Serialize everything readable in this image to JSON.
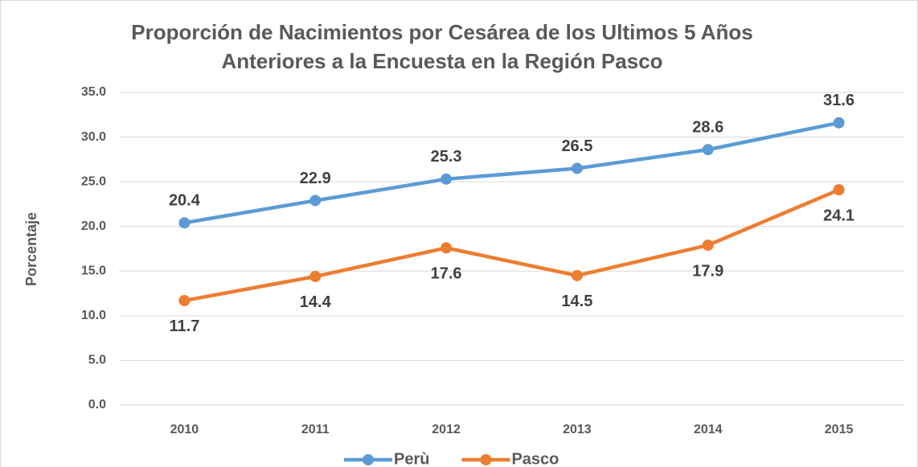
{
  "chart_data": {
    "type": "line",
    "title": [
      "Proporción de Nacimientos por Cesárea de los Ultimos 5 Años",
      "Anteriores a la Encuesta en la Región Pasco"
    ],
    "y_label": "Porcentaje",
    "categories": [
      "2010",
      "2011",
      "2012",
      "2013",
      "2014",
      "2015"
    ],
    "series": [
      {
        "name": "Perù",
        "color": "#5b9bd5",
        "values": [
          20.4,
          22.9,
          25.3,
          26.5,
          28.6,
          31.6
        ]
      },
      {
        "name": "Pasco",
        "color": "#ed7d31",
        "values": [
          11.7,
          14.4,
          17.6,
          14.5,
          17.9,
          24.1
        ]
      }
    ],
    "ylim": [
      0,
      35
    ],
    "yticks": [
      {
        "value": 0,
        "label": "0.0"
      },
      {
        "value": 5,
        "label": "5.0"
      },
      {
        "value": 10,
        "label": "10.0"
      },
      {
        "value": 15,
        "label": "15.0"
      },
      {
        "value": 20,
        "label": "20.0"
      },
      {
        "value": 25,
        "label": "25.0"
      },
      {
        "value": 30,
        "label": "30.0"
      },
      {
        "value": 35,
        "label": "35.0"
      }
    ],
    "grid": true,
    "legend": "bottom"
  }
}
